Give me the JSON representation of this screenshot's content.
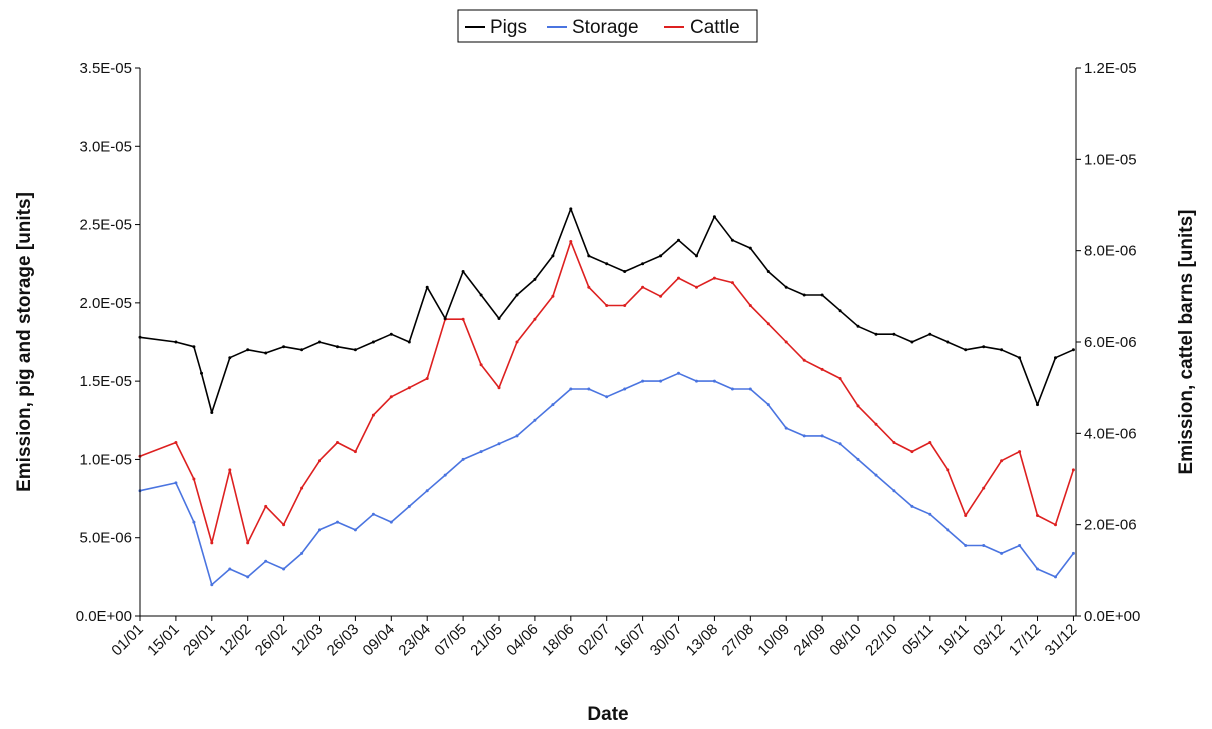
{
  "chart_data": {
    "type": "line",
    "title": "",
    "xlabel": "Date",
    "ylabel_left": "Emission, pig and storage [units]",
    "ylabel_right": "Emission, cattel barns [units]",
    "x_ticks": [
      "01/01",
      "15/01",
      "29/01",
      "12/02",
      "26/02",
      "12/03",
      "26/03",
      "09/04",
      "23/04",
      "07/05",
      "21/05",
      "04/06",
      "18/06",
      "02/07",
      "16/07",
      "30/07",
      "13/08",
      "27/08",
      "10/09",
      "24/09",
      "08/10",
      "22/10",
      "05/11",
      "19/11",
      "03/12",
      "17/12",
      "31/12"
    ],
    "y_left_ticks": [
      "0.0E+00",
      "5.0E-06",
      "1.0E-05",
      "1.5E-05",
      "2.0E-05",
      "2.5E-05",
      "3.0E-05",
      "3.5E-05"
    ],
    "y_right_ticks": [
      "0.0E+00",
      "2.0E-06",
      "4.0E-06",
      "6.0E-06",
      "8.0E-06",
      "1.0E-05",
      "1.2E-05"
    ],
    "ylim_left": [
      0,
      3.5e-05
    ],
    "ylim_right": [
      0,
      1.2e-05
    ],
    "xlim_days": [
      0,
      365
    ],
    "legend": {
      "placement": "top-center",
      "entries": [
        "Pigs",
        "Storage",
        "Cattle"
      ]
    },
    "grid": false,
    "series": [
      {
        "name": "Pigs",
        "axis": "left",
        "color": "#000000",
        "x": [
          "01/01",
          "15/01",
          "22/01",
          "25/01",
          "29/01",
          "05/02",
          "12/02",
          "19/02",
          "26/02",
          "05/03",
          "12/03",
          "19/03",
          "26/03",
          "02/04",
          "09/04",
          "16/04",
          "23/04",
          "30/04",
          "07/05",
          "14/05",
          "21/05",
          "28/05",
          "04/06",
          "11/06",
          "18/06",
          "25/06",
          "02/07",
          "09/07",
          "16/07",
          "23/07",
          "30/07",
          "06/08",
          "13/08",
          "20/08",
          "27/08",
          "03/09",
          "10/09",
          "17/09",
          "24/09",
          "01/10",
          "08/10",
          "15/10",
          "22/10",
          "29/10",
          "05/11",
          "12/11",
          "19/11",
          "26/11",
          "03/12",
          "10/12",
          "17/12",
          "24/12",
          "31/12"
        ],
        "y": [
          1.78e-05,
          1.75e-05,
          1.72e-05,
          1.55e-05,
          1.3e-05,
          1.65e-05,
          1.7e-05,
          1.68e-05,
          1.72e-05,
          1.7e-05,
          1.75e-05,
          1.72e-05,
          1.7e-05,
          1.75e-05,
          1.8e-05,
          1.75e-05,
          2.1e-05,
          1.9e-05,
          2.2e-05,
          2.05e-05,
          1.9e-05,
          2.05e-05,
          2.15e-05,
          2.3e-05,
          2.6e-05,
          2.3e-05,
          2.25e-05,
          2.2e-05,
          2.25e-05,
          2.3e-05,
          2.4e-05,
          2.3e-05,
          2.55e-05,
          2.4e-05,
          2.35e-05,
          2.2e-05,
          2.1e-05,
          2.05e-05,
          2.05e-05,
          1.95e-05,
          1.85e-05,
          1.8e-05,
          1.8e-05,
          1.75e-05,
          1.8e-05,
          1.75e-05,
          1.7e-05,
          1.72e-05,
          1.7e-05,
          1.65e-05,
          1.35e-05,
          1.65e-05,
          1.7e-05
        ]
      },
      {
        "name": "Storage",
        "axis": "left",
        "color": "#4a74e0",
        "x": [
          "01/01",
          "15/01",
          "22/01",
          "29/01",
          "05/02",
          "12/02",
          "19/02",
          "26/02",
          "05/03",
          "12/03",
          "19/03",
          "26/03",
          "02/04",
          "09/04",
          "16/04",
          "23/04",
          "30/04",
          "07/05",
          "14/05",
          "21/05",
          "28/05",
          "04/06",
          "11/06",
          "18/06",
          "25/06",
          "02/07",
          "09/07",
          "16/07",
          "23/07",
          "30/07",
          "06/08",
          "13/08",
          "20/08",
          "27/08",
          "03/09",
          "10/09",
          "17/09",
          "24/09",
          "01/10",
          "08/10",
          "15/10",
          "22/10",
          "29/10",
          "05/11",
          "12/11",
          "19/11",
          "26/11",
          "03/12",
          "10/12",
          "17/12",
          "24/12",
          "31/12"
        ],
        "y": [
          8e-06,
          8.5e-06,
          6e-06,
          2e-06,
          3e-06,
          2.5e-06,
          3.5e-06,
          3e-06,
          4e-06,
          5.5e-06,
          6e-06,
          5.5e-06,
          6.5e-06,
          6e-06,
          7e-06,
          8e-06,
          9e-06,
          1e-05,
          1.05e-05,
          1.1e-05,
          1.15e-05,
          1.25e-05,
          1.35e-05,
          1.45e-05,
          1.45e-05,
          1.4e-05,
          1.45e-05,
          1.5e-05,
          1.5e-05,
          1.55e-05,
          1.5e-05,
          1.5e-05,
          1.45e-05,
          1.45e-05,
          1.35e-05,
          1.2e-05,
          1.15e-05,
          1.15e-05,
          1.1e-05,
          1e-05,
          9e-06,
          8e-06,
          7e-06,
          6.5e-06,
          5.5e-06,
          4.5e-06,
          4.5e-06,
          4e-06,
          4.5e-06,
          3e-06,
          2.5e-06,
          4e-06
        ]
      },
      {
        "name": "Cattle",
        "axis": "right",
        "color": "#dd2020",
        "x": [
          "01/01",
          "15/01",
          "22/01",
          "29/01",
          "05/02",
          "12/02",
          "19/02",
          "26/02",
          "05/03",
          "12/03",
          "19/03",
          "26/03",
          "02/04",
          "09/04",
          "16/04",
          "23/04",
          "30/04",
          "07/05",
          "14/05",
          "21/05",
          "28/05",
          "04/06",
          "11/06",
          "18/06",
          "25/06",
          "02/07",
          "09/07",
          "16/07",
          "23/07",
          "30/07",
          "06/08",
          "13/08",
          "20/08",
          "27/08",
          "03/09",
          "10/09",
          "17/09",
          "24/09",
          "01/10",
          "08/10",
          "15/10",
          "22/10",
          "29/10",
          "05/11",
          "12/11",
          "19/11",
          "26/11",
          "03/12",
          "10/12",
          "17/12",
          "24/12",
          "31/12"
        ],
        "y": [
          3.5e-06,
          3.8e-06,
          3e-06,
          1.6e-06,
          3.2e-06,
          1.6e-06,
          2.4e-06,
          2e-06,
          2.8e-06,
          3.4e-06,
          3.8e-06,
          3.6e-06,
          4.4e-06,
          4.8e-06,
          5e-06,
          5.2e-06,
          6.5e-06,
          6.5e-06,
          5.5e-06,
          5e-06,
          6e-06,
          6.5e-06,
          7e-06,
          8.2e-06,
          7.2e-06,
          6.8e-06,
          6.8e-06,
          7.2e-06,
          7e-06,
          7.4e-06,
          7.2e-06,
          7.4e-06,
          7.3e-06,
          6.8e-06,
          6.4e-06,
          6e-06,
          5.6e-06,
          5.4e-06,
          5.2e-06,
          4.6e-06,
          4.2e-06,
          3.8e-06,
          3.6e-06,
          3.8e-06,
          3.2e-06,
          2.2e-06,
          2.8e-06,
          3.4e-06,
          3.6e-06,
          2.2e-06,
          2e-06,
          3.2e-06
        ]
      }
    ]
  }
}
